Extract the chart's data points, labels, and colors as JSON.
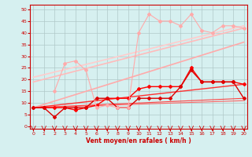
{
  "background_color": "#d6f0f0",
  "grid_color": "#b0c8c8",
  "xlabel": "Vent moyen/en rafales ( km/h )",
  "x_ticks": [
    0,
    1,
    2,
    3,
    4,
    5,
    6,
    7,
    8,
    9,
    10,
    11,
    12,
    13,
    14,
    15,
    16,
    17,
    18,
    19,
    20
  ],
  "y_ticks": [
    0,
    5,
    10,
    15,
    20,
    25,
    30,
    35,
    40,
    45,
    50
  ],
  "ylim": [
    -1,
    52
  ],
  "xlim": [
    -0.3,
    20.3
  ],
  "straight_lines": [
    {
      "x0": 0,
      "y0": 8,
      "x1": 20,
      "y1": 11,
      "color": "#ff6666",
      "lw": 0.8
    },
    {
      "x0": 0,
      "y0": 8,
      "x1": 20,
      "y1": 12,
      "color": "#ff4444",
      "lw": 0.8
    },
    {
      "x0": 0,
      "y0": 8,
      "x1": 20,
      "y1": 18,
      "color": "#ff3333",
      "lw": 1.0
    },
    {
      "x0": 0,
      "y0": 8,
      "x1": 20,
      "y1": 36,
      "color": "#ffaaaa",
      "lw": 1.2
    },
    {
      "x0": 0,
      "y0": 19,
      "x1": 20,
      "y1": 42,
      "color": "#ffbbbb",
      "lw": 1.2
    },
    {
      "x0": 0,
      "y0": 21,
      "x1": 20,
      "y1": 43,
      "color": "#ffcccc",
      "lw": 1.2
    }
  ],
  "jagged_lines": [
    {
      "x": [
        0,
        1,
        2,
        3,
        4,
        5,
        6,
        7,
        8,
        9,
        10,
        11,
        12,
        13,
        14,
        15,
        16,
        17,
        18,
        19,
        20
      ],
      "y": [
        8,
        8,
        8,
        8,
        7,
        8,
        9,
        12,
        12,
        12,
        16,
        17,
        17,
        17,
        17,
        25,
        19,
        19,
        19,
        19,
        18
      ],
      "color": "#ff0000",
      "lw": 1.0,
      "marker": "D",
      "ms": 2.0
    },
    {
      "x": [
        0,
        1,
        2,
        3,
        4,
        5,
        6,
        7,
        8,
        9,
        10,
        11,
        12,
        13,
        14,
        15,
        16,
        17,
        18,
        19,
        20
      ],
      "y": [
        8,
        8,
        4,
        8,
        8,
        8,
        12,
        12,
        8,
        8,
        12,
        12,
        12,
        12,
        17,
        24,
        19,
        19,
        19,
        19,
        12
      ],
      "color": "#dd0000",
      "lw": 1.0,
      "marker": "D",
      "ms": 2.0
    },
    {
      "x": [
        2,
        3,
        4,
        5,
        6,
        7,
        8,
        9,
        10,
        11,
        12,
        13,
        14,
        15,
        16,
        17,
        18,
        19,
        20
      ],
      "y": [
        15,
        27,
        28,
        24,
        8,
        9,
        8,
        8,
        40,
        48,
        45,
        45,
        43,
        48,
        41,
        40,
        43,
        43,
        42
      ],
      "color": "#ffaaaa",
      "lw": 0.8,
      "marker": "D",
      "ms": 2.0
    }
  ]
}
